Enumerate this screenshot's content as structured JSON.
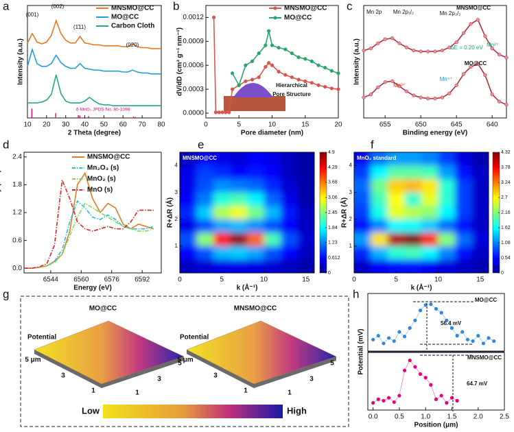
{
  "chart_data": [
    {
      "type": "line",
      "label": "a",
      "xlabel": "2 Theta (degree)",
      "ylabel": "Intensity (a.u.)",
      "xlim": [
        10,
        80
      ],
      "xticks": [
        10,
        20,
        30,
        40,
        50,
        60,
        70,
        80
      ],
      "ylim": [
        0,
        12
      ],
      "x": [
        10,
        12.5,
        15,
        17.5,
        20,
        22.5,
        25,
        27.5,
        30,
        32.5,
        35,
        37.5,
        40,
        42.5,
        45,
        47.5,
        50,
        52.5,
        55,
        57.5,
        60,
        62.5,
        65,
        67.5,
        70,
        72.5,
        75,
        77.5,
        80
      ],
      "series": [
        {
          "name": "MNSMO@CC",
          "color": "#e87722",
          "values": [
            8.0,
            9.0,
            8.1,
            7.9,
            8.1,
            8.8,
            10.4,
            9.0,
            8.3,
            8.0,
            8.0,
            8.7,
            8.0,
            7.9,
            7.8,
            7.8,
            7.7,
            7.7,
            7.7,
            7.7,
            7.6,
            7.6,
            7.9,
            7.6,
            7.5,
            7.5,
            7.4,
            7.4,
            7.4
          ]
        },
        {
          "name": "MO@CC",
          "color": "#1f9fd6",
          "values": [
            5.5,
            7.3,
            5.8,
            5.5,
            5.5,
            5.8,
            6.7,
            5.9,
            5.5,
            5.3,
            5.3,
            5.8,
            5.3,
            5.2,
            5.1,
            5.1,
            5.0,
            5.0,
            5.0,
            5.0,
            4.9,
            4.9,
            5.1,
            4.9,
            4.8,
            4.8,
            4.7,
            4.7,
            4.7
          ]
        },
        {
          "name": "Carbon Cloth",
          "color": "#26a58a",
          "values": [
            1.6,
            1.6,
            1.6,
            1.7,
            1.9,
            2.5,
            4.6,
            2.6,
            1.8,
            1.6,
            1.6,
            1.6,
            1.8,
            2.2,
            1.8,
            1.5,
            1.4,
            1.4,
            1.3,
            1.3,
            1.3,
            1.3,
            1.3,
            1.3,
            1.3,
            1.3,
            1.3,
            1.3,
            1.3
          ]
        }
      ],
      "reference": {
        "name": "δ-MnO₂ JPDS No. 80-1098",
        "color": "#e6007e",
        "x": [
          12.3,
          24.8,
          36.6,
          37.4,
          42,
          65.5,
          66.5
        ],
        "values": [
          1.0,
          0.5,
          0.3,
          0.25,
          0.2,
          0.15,
          0.1
        ]
      },
      "annotations": [
        "(001)",
        "(002)",
        "(1̄11)",
        "(020)"
      ]
    },
    {
      "type": "line",
      "label": "b",
      "xlabel": "Pore diameter (nm)",
      "ylabel": "dV/dD (cm³ g⁻¹ nm⁻¹)",
      "xlim": [
        0,
        20
      ],
      "xticks": [
        0,
        5,
        10,
        15,
        20
      ],
      "ylim": [
        -6e-05,
        0.00135
      ],
      "yticks": [
        {
          "value": 0,
          "label": "0.0000"
        },
        0.0003,
        0.0006,
        0.0009,
        0.0012
      ],
      "x": [
        1.2,
        1.5,
        2,
        2.5,
        3,
        3.5,
        4,
        5,
        6,
        7,
        8,
        9,
        9.5,
        10,
        11,
        12,
        13,
        14,
        15,
        16,
        17,
        18,
        19,
        20
      ],
      "series": [
        {
          "name": "MNSMO@CC",
          "color": "#d9534f",
          "marker": "circle",
          "values": [
            0.0012,
            1e-05,
            1e-05,
            1e-05,
            1e-05,
            1e-05,
            0.0003,
            0.00035,
            0.0004,
            0.00042,
            0.00045,
            0.00058,
            0.00063,
            0.0006,
            0.00052,
            0.00048,
            0.00045,
            0.00042,
            0.0004,
            0.00038,
            0.00035,
            0.00033,
            0.00031,
            0.0003
          ]
        },
        {
          "name": "MO@CC",
          "color": "#2aa56a",
          "marker": "circle",
          "values": [
            null,
            null,
            null,
            null,
            null,
            null,
            0.0005,
            0.00035,
            0.0006,
            0.00065,
            0.00075,
            0.00085,
            0.00103,
            0.00085,
            0.00082,
            0.0008,
            0.00075,
            0.0007,
            0.00068,
            0.00065,
            0.0006,
            0.00057,
            0.00053,
            0.0005
          ]
        }
      ],
      "annotations": [
        "Hierarchical",
        "Pore Structure"
      ]
    },
    {
      "type": "line",
      "label": "c",
      "xlabel": "Binding energy (eV)",
      "ylabel": "Intensity (a.u.)",
      "xlim": [
        658,
        638
      ],
      "xticks": [
        655,
        650,
        645,
        640
      ],
      "ylim": [
        0,
        11
      ],
      "x": [
        658,
        657,
        656,
        655,
        654,
        653,
        652,
        651,
        650,
        649,
        648,
        647,
        646,
        645,
        644,
        643,
        642,
        641,
        640,
        639,
        638
      ],
      "series": [
        {
          "name": "MNSMO@CC",
          "color": "#b03030",
          "marker": "circle",
          "marker_color": "#e68aa8",
          "values": [
            6.6,
            6.8,
            7.3,
            7.7,
            7.8,
            7.3,
            6.9,
            6.6,
            6.5,
            6.5,
            6.5,
            6.6,
            6.9,
            7.4,
            8.3,
            9.2,
            9.6,
            8.0,
            6.8,
            6.2,
            5.9
          ]
        },
        {
          "name": "MO@CC",
          "color": "#b03030",
          "marker": "circle",
          "marker_color": "#e68aa8",
          "values": [
            2.0,
            2.3,
            3.0,
            3.5,
            3.6,
            3.1,
            2.6,
            2.2,
            2.0,
            1.9,
            1.9,
            2.0,
            2.4,
            3.2,
            4.3,
            5.0,
            5.3,
            4.2,
            2.3,
            1.6,
            1.3
          ]
        }
      ],
      "annotations": [
        "Mn 2p",
        "Mn 2p₁/₂",
        "Mn 2p₃/₂",
        "ΔE = 0.20 eV",
        "Mn²⁺",
        "Mn³⁺",
        "Mn⁴⁺"
      ]
    },
    {
      "type": "line",
      "label": "d",
      "xlabel": "Energy (eV)",
      "ylabel": "Normalized intensity (a.u.)",
      "xlim": [
        6530,
        6602
      ],
      "xticks": [
        6544,
        6560,
        6576,
        6592
      ],
      "ylim": [
        -0.1,
        2.5
      ],
      "yticks": [
        {
          "value": 0,
          "label": "0.0"
        },
        0.6,
        1.2,
        1.8,
        2.4
      ],
      "x": [
        6530,
        6534,
        6538,
        6542,
        6546,
        6550,
        6554,
        6558,
        6562,
        6566,
        6570,
        6574,
        6578,
        6582,
        6586,
        6590,
        6594,
        6598
      ],
      "series": [
        {
          "name": "MNSMO@CC",
          "color": "#e87722",
          "values": [
            0,
            0,
            0.02,
            0.05,
            0.15,
            0.3,
            0.8,
            1.8,
            2.05,
            1.5,
            1.2,
            1.4,
            1.3,
            0.95,
            0.85,
            0.95,
            0.9,
            0.85
          ]
        },
        {
          "name": "Mn₂O₃ (s)",
          "color": "#22c1d6",
          "dash": "dashdot",
          "values": [
            0,
            0,
            0.02,
            0.05,
            0.15,
            0.4,
            1.0,
            1.45,
            1.3,
            1.1,
            1.05,
            1.15,
            1.05,
            0.9,
            0.85,
            0.85,
            0.85,
            0.9
          ]
        },
        {
          "name": "MnO₂ (s)",
          "color": "#7ed957",
          "dash": "dashdot",
          "values": [
            0,
            0,
            0.02,
            0.05,
            0.12,
            0.3,
            0.7,
            1.1,
            1.4,
            1.3,
            1.2,
            1.1,
            1.0,
            0.9,
            0.85,
            0.8,
            0.8,
            0.85
          ]
        },
        {
          "name": "MnO (s)",
          "color": "#d62728",
          "dash": "dashdot",
          "values": [
            0,
            0,
            0.03,
            0.1,
            0.5,
            1.9,
            1.5,
            1.0,
            0.85,
            0.8,
            0.85,
            0.9,
            0.85,
            0.85,
            1.0,
            1.25,
            1.25,
            1.25
          ]
        }
      ]
    },
    {
      "type": "heatmap",
      "label": "e",
      "title": "MNSMO@CC",
      "xlabel": "k (Å⁻¹)",
      "ylabel": "R+ΔR (Å)",
      "xlim": [
        0,
        16
      ],
      "xticks": [
        0,
        5,
        10,
        15
      ],
      "ylim": [
        0,
        4.5
      ],
      "yticks": [
        1,
        2,
        3,
        4
      ],
      "clim": [
        0,
        4.9
      ],
      "cticks": [
        0,
        0.612,
        1.23,
        1.84,
        2.45,
        3.06,
        3.68,
        4.29,
        4.9
      ],
      "x": [
        1,
        3,
        5,
        7,
        9,
        11,
        13,
        15
      ],
      "y": [
        0.25,
        0.75,
        1.25,
        1.75,
        2.25,
        2.75,
        3.25,
        3.75,
        4.25
      ],
      "z": [
        [
          0.3,
          0.4,
          0.5,
          0.5,
          0.5,
          0.4,
          0.3,
          0.2
        ],
        [
          0.6,
          1.0,
          1.5,
          1.6,
          1.4,
          1.0,
          0.6,
          0.3
        ],
        [
          1.0,
          2.5,
          4.2,
          4.8,
          3.8,
          2.2,
          1.0,
          0.4
        ],
        [
          0.5,
          1.0,
          1.4,
          1.5,
          1.3,
          1.0,
          0.6,
          0.3
        ],
        [
          0.8,
          1.6,
          2.7,
          3.0,
          2.4,
          1.5,
          0.7,
          0.3
        ],
        [
          0.6,
          1.2,
          2.0,
          2.2,
          1.8,
          1.1,
          0.5,
          0.2
        ],
        [
          0.5,
          1.0,
          1.3,
          1.2,
          1.1,
          0.8,
          0.4,
          0.2
        ],
        [
          0.5,
          0.9,
          0.8,
          0.6,
          0.7,
          0.6,
          0.3,
          0.2
        ],
        [
          0.3,
          0.6,
          0.5,
          0.4,
          0.6,
          0.5,
          0.3,
          0.2
        ]
      ]
    },
    {
      "type": "heatmap",
      "label": "f",
      "title": "MnO₂ standard",
      "xlabel": "k (Å⁻¹)",
      "ylabel": "R+ΔR (Å)",
      "xlim": [
        0,
        16
      ],
      "xticks": [
        0,
        5,
        10,
        15
      ],
      "ylim": [
        0,
        4.5
      ],
      "yticks": [
        1,
        2,
        3,
        4
      ],
      "clim": [
        0,
        4.32
      ],
      "cticks": [
        0,
        0.54,
        1.08,
        1.62,
        2.16,
        2.7,
        3.24,
        3.78,
        4.32
      ],
      "x": [
        1,
        3,
        5,
        7,
        9,
        11,
        13,
        15
      ],
      "y": [
        0.25,
        0.75,
        1.25,
        1.75,
        2.25,
        2.75,
        3.25,
        3.75,
        4.25
      ],
      "z": [
        [
          0.3,
          0.5,
          0.6,
          0.6,
          0.5,
          0.4,
          0.3,
          0.2
        ],
        [
          0.7,
          1.3,
          1.8,
          1.9,
          1.6,
          1.1,
          0.6,
          0.3
        ],
        [
          1.2,
          2.8,
          4.1,
          4.3,
          3.6,
          2.2,
          1.0,
          0.4
        ],
        [
          0.6,
          1.1,
          1.6,
          1.6,
          1.4,
          1.0,
          0.6,
          0.3
        ],
        [
          0.8,
          1.7,
          2.6,
          2.4,
          2.2,
          1.6,
          0.8,
          0.3
        ],
        [
          0.9,
          1.9,
          2.7,
          1.8,
          2.6,
          1.8,
          0.8,
          0.3
        ],
        [
          1.0,
          2.1,
          2.9,
          3.0,
          2.8,
          1.8,
          0.8,
          0.3
        ],
        [
          0.8,
          1.6,
          2.0,
          2.0,
          1.9,
          1.2,
          0.6,
          0.3
        ],
        [
          0.5,
          1.0,
          1.2,
          1.2,
          1.1,
          0.8,
          0.4,
          0.2
        ]
      ]
    },
    {
      "type": "scatter",
      "label": "h",
      "xlabel": "Position (μm)",
      "ylabel": "Potential (mV)",
      "xlim": [
        -0.1,
        2.5
      ],
      "xticks": [
        {
          "value": 0,
          "label": "0.0"
        },
        0.5,
        {
          "value": 1,
          "label": "1.0"
        },
        1.5,
        {
          "value": 2,
          "label": "2.0"
        },
        2.5
      ],
      "x": [
        0,
        0.1,
        0.2,
        0.3,
        0.4,
        0.5,
        0.6,
        0.7,
        0.8,
        0.9,
        1.0,
        1.1,
        1.2,
        1.3,
        1.4,
        1.5,
        1.6,
        1.7,
        1.8,
        1.9,
        2.0,
        2.1,
        2.2,
        2.3
      ],
      "series": [
        {
          "name": "MO@CC",
          "color": "#2e86de",
          "ylim": [
            -5,
            70
          ],
          "values": [
            10,
            15,
            5,
            12,
            8,
            20,
            14,
            25,
            35,
            48,
            55,
            56,
            50,
            45,
            35,
            25,
            15,
            20,
            10,
            8,
            15,
            5,
            12,
            8
          ]
        },
        {
          "name": "MNSMO@CC",
          "color": "#e6007e",
          "ylim": [
            -5,
            75
          ],
          "values": [
            5,
            10,
            8,
            12,
            6,
            15,
            50,
            64,
            55,
            45,
            40,
            30,
            10,
            15,
            5,
            12,
            8,
            null,
            null,
            null,
            null,
            null,
            null,
            null
          ]
        }
      ],
      "annotations": [
        "56.4 mV",
        "64.7 mV"
      ]
    }
  ],
  "panel_g": {
    "label": "g",
    "titles": [
      "MO@CC",
      "MNSMO@CC"
    ],
    "subtitles": [
      "Potential",
      "Potential"
    ],
    "axis_labels": [
      "5 μm",
      "3",
      "1",
      "5",
      "3",
      "1",
      "5 μm",
      "3",
      "1",
      "5",
      "3",
      "1"
    ],
    "colorbar": {
      "low": "Low",
      "high": "High"
    }
  }
}
